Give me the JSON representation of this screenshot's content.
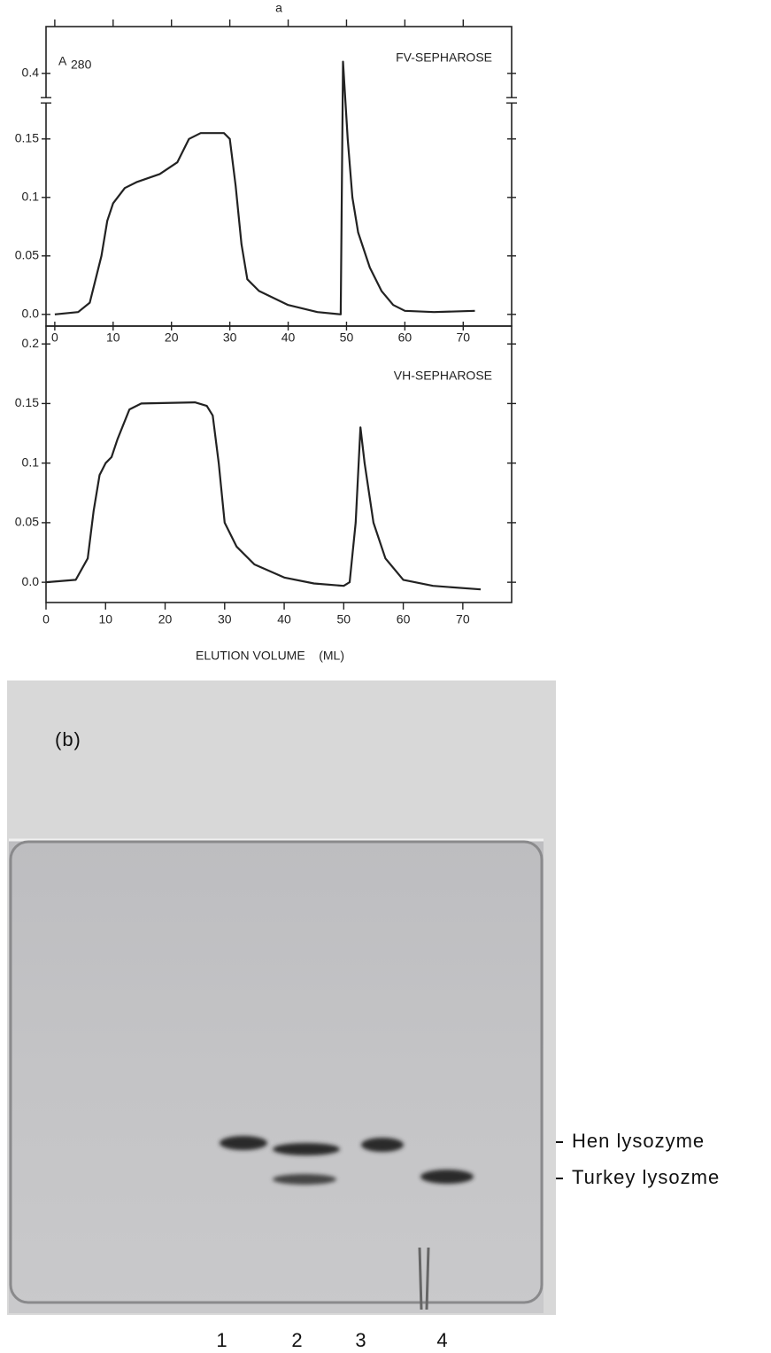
{
  "figure_label": "a",
  "chart_data": [
    {
      "type": "line",
      "annotation": "FV-SEPHAROSE",
      "y_label": "A",
      "y_label_subscript": "280",
      "color": "#222222",
      "x": [
        0,
        4,
        6,
        8,
        9,
        10,
        12,
        14,
        18,
        21,
        23,
        25,
        29,
        30,
        31,
        32,
        33,
        35,
        40,
        45,
        49,
        49.4,
        50.2,
        51,
        52,
        54,
        56,
        58,
        60,
        65,
        72
      ],
      "values": [
        0.0,
        0.002,
        0.01,
        0.05,
        0.08,
        0.095,
        0.108,
        0.113,
        0.12,
        0.13,
        0.15,
        0.155,
        0.155,
        0.15,
        0.11,
        0.06,
        0.03,
        0.02,
        0.008,
        0.002,
        0.0,
        0.41,
        0.15,
        0.1,
        0.07,
        0.04,
        0.02,
        0.008,
        0.003,
        0.002,
        0.003
      ],
      "xlim": [
        -1.5,
        78.3
      ],
      "xticks": [
        0,
        10,
        20,
        30,
        40,
        50,
        60,
        70
      ],
      "ylim": [
        -0.01,
        0.44
      ],
      "axis_break": [
        0.18,
        0.38
      ],
      "yticks": [
        {
          "value": 0,
          "label": "0.0"
        },
        0.05,
        0.1,
        0.15,
        0.4
      ]
    },
    {
      "type": "line",
      "annotation": "VH-SEPHAROSE",
      "x_label": "ELUTION VOLUME    (ML)",
      "color": "#222222",
      "x": [
        0,
        5,
        7,
        8,
        9,
        10,
        11,
        12,
        14,
        16,
        25,
        27,
        28,
        29,
        30,
        32,
        35,
        40,
        45,
        50,
        51,
        52,
        52.8,
        53.5,
        55,
        57,
        60,
        65,
        73
      ],
      "values": [
        0.0,
        0.002,
        0.02,
        0.06,
        0.09,
        0.1,
        0.105,
        0.12,
        0.145,
        0.15,
        0.151,
        0.148,
        0.14,
        0.1,
        0.05,
        0.03,
        0.015,
        0.004,
        -0.001,
        -0.003,
        0.0,
        0.05,
        0.13,
        0.1,
        0.05,
        0.02,
        0.002,
        -0.003,
        -0.006
      ],
      "xlim": [
        0,
        78.2
      ],
      "xticks": [
        0,
        10,
        20,
        30,
        40,
        50,
        60,
        70
      ],
      "ylim": [
        -0.017,
        0.215
      ],
      "yticks": [
        {
          "value": 0,
          "label": "0.0"
        },
        0.05,
        0.1,
        0.15,
        0.2
      ]
    }
  ],
  "gel": {
    "panel_label": "(b)",
    "band_labels": [
      "Hen lysozyme",
      "Turkey lysozme"
    ],
    "lanes": [
      "1",
      "2",
      "3",
      "4"
    ]
  }
}
